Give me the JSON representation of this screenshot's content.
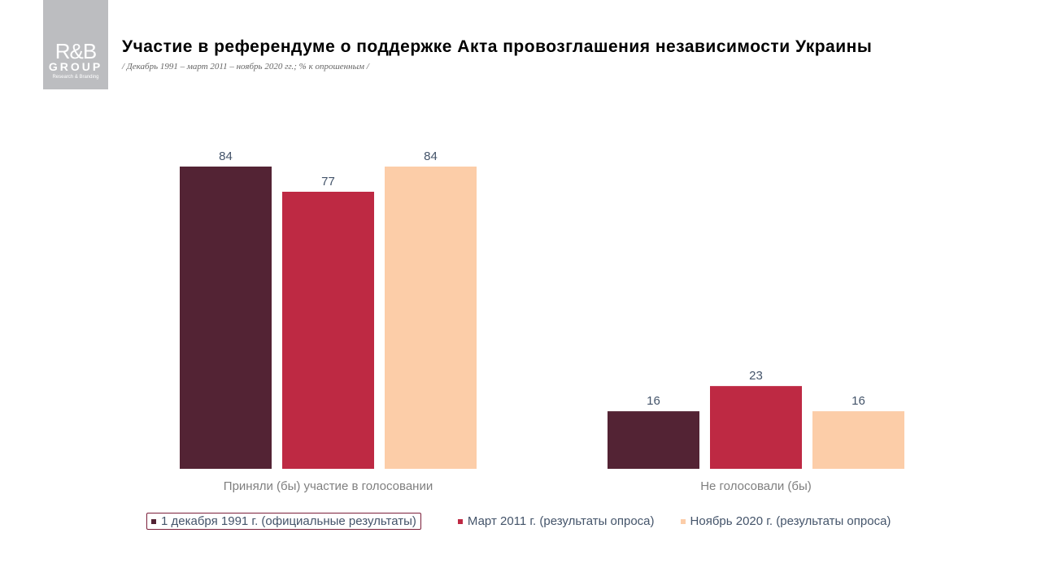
{
  "logo": {
    "text": "R&B GROUP Research & Branding",
    "line1": "R&B",
    "line2": "GROUP",
    "line3": "Research & Branding"
  },
  "title": "Участие в референдуме о поддержке Акта провозглашения независимости Украины",
  "subtitle": "/ Декабрь 1991 – март 2011 – ноябрь 2020 гг.; % к опрошенным /",
  "chart_data": {
    "type": "bar",
    "categories": [
      "Приняли (бы) участие в голосовании",
      "Не голосовали (бы)"
    ],
    "series": [
      {
        "name": "1 декабря 1991 г. (официальные результаты)",
        "color": "#532334",
        "values": [
          84,
          16
        ]
      },
      {
        "name": "Март 2011 г. (результаты опроса)",
        "color": "#be2943",
        "values": [
          77,
          23
        ]
      },
      {
        "name": "Ноябрь 2020 г. (результаты опроса)",
        "color": "#fccda8",
        "values": [
          84,
          16
        ]
      }
    ],
    "ylim": [
      0,
      84
    ],
    "grid": false,
    "legend_position": "bottom"
  }
}
